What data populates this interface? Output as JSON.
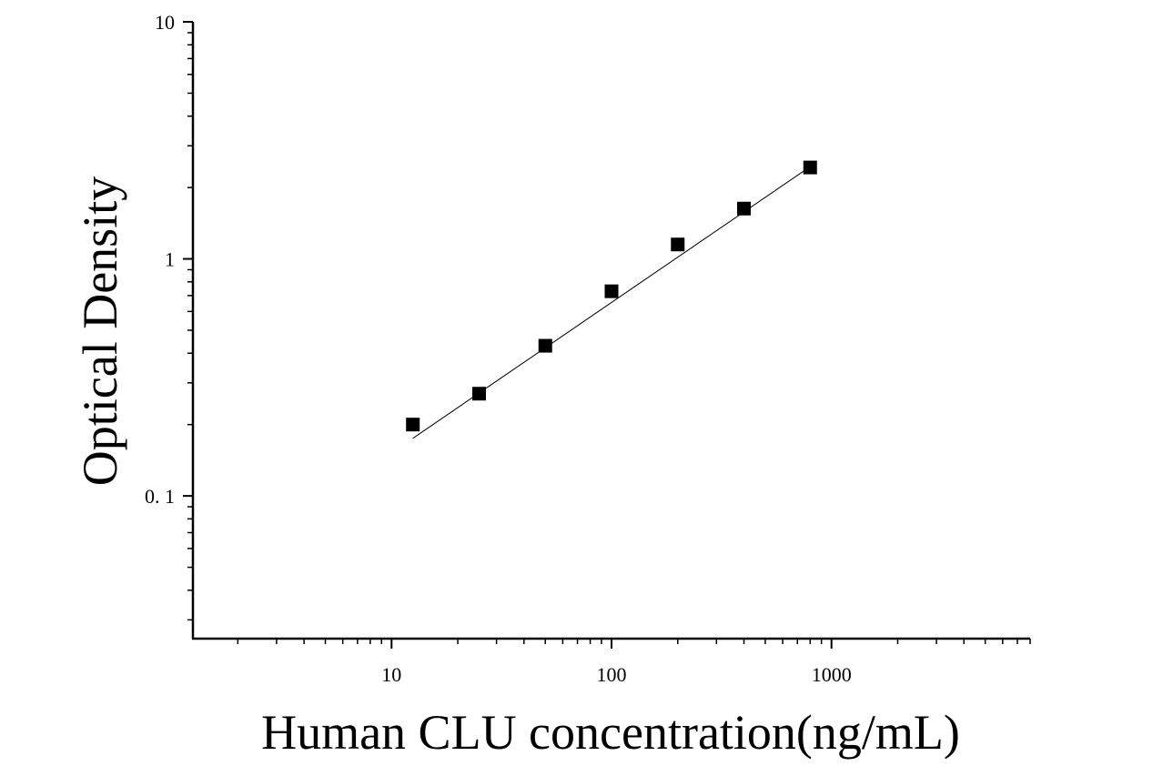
{
  "chart_data": {
    "type": "scatter",
    "title": "",
    "xlabel": "Human CLU concentration(ng/mL)",
    "ylabel": "Optical Density",
    "x_scale": "log",
    "y_scale": "log",
    "xlim": [
      1.25,
      8000
    ],
    "ylim": [
      0.025,
      10
    ],
    "x_ticks": [
      {
        "value": 10,
        "label": "10"
      },
      {
        "value": 100,
        "label": "100"
      },
      {
        "value": 1000,
        "label": "1000"
      }
    ],
    "y_ticks": [
      {
        "value": 0.1,
        "label": "0. 1"
      },
      {
        "value": 1,
        "label": "1"
      },
      {
        "value": 10,
        "label": "10"
      }
    ],
    "grid": false,
    "legend": "none",
    "series": [
      {
        "marker": "square",
        "color": "#000000",
        "points": [
          {
            "x": 12.5,
            "y": 0.2
          },
          {
            "x": 25,
            "y": 0.27
          },
          {
            "x": 50,
            "y": 0.43
          },
          {
            "x": 100,
            "y": 0.73
          },
          {
            "x": 200,
            "y": 1.15
          },
          {
            "x": 400,
            "y": 1.63
          },
          {
            "x": 800,
            "y": 2.43
          }
        ]
      }
    ],
    "fit_line": {
      "color": "#000000",
      "points": [
        {
          "x": 12.5,
          "y": 0.175
        },
        {
          "x": 800,
          "y": 2.45
        }
      ]
    }
  }
}
